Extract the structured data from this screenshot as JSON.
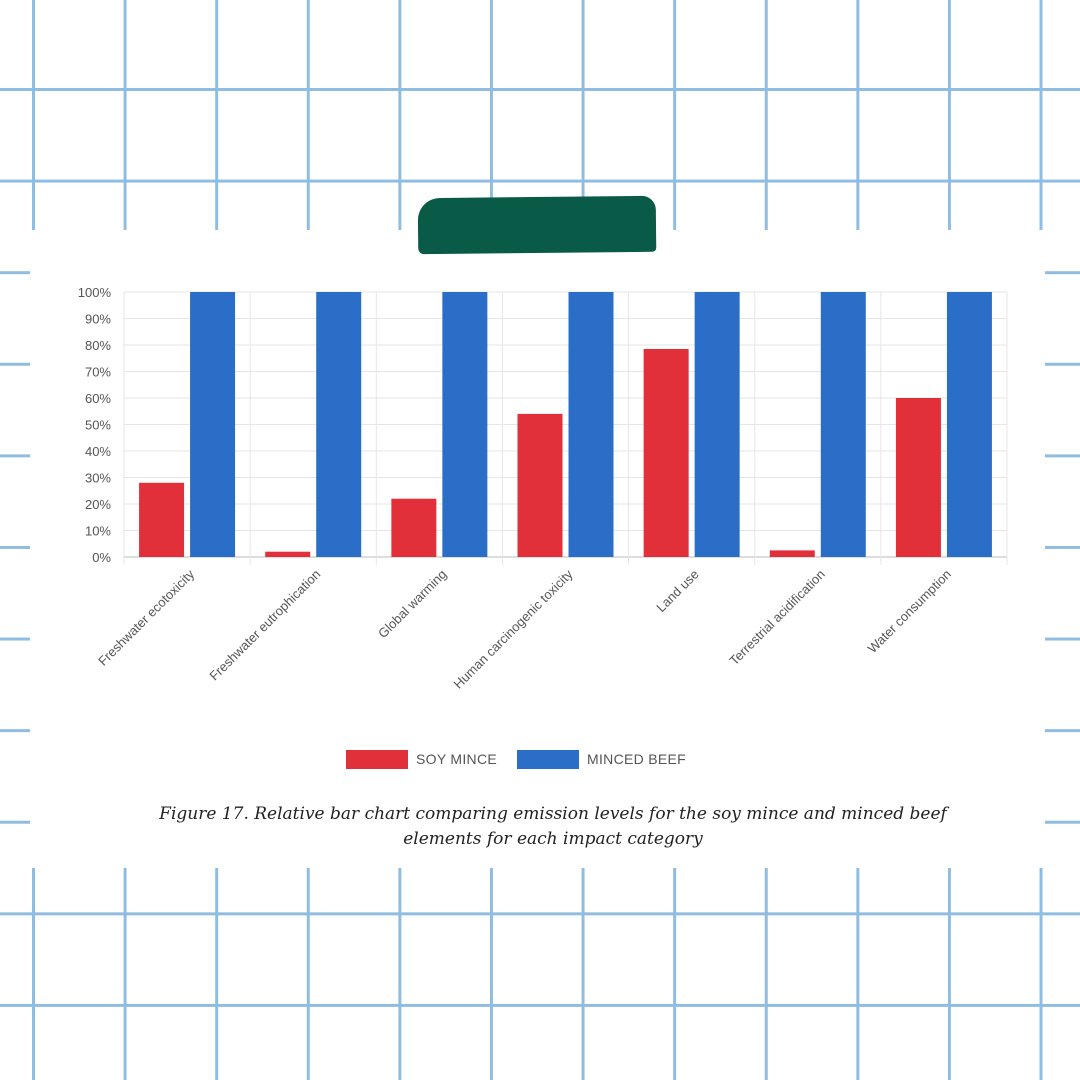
{
  "colors": {
    "soy": "#e1303a",
    "beef": "#2a6ec8",
    "grid": "#e6e6e6",
    "axis": "#bbbbbb",
    "tick_text": "#555555"
  },
  "legend": [
    {
      "label": "SOY MINCE",
      "color": "#e1303a"
    },
    {
      "label": "MINCED BEEF",
      "color": "#2a6ec8"
    }
  ],
  "caption": {
    "line1": "Figure 17. Relative bar chart comparing emission levels for the soy mince and minced beef",
    "line2": "elements for each impact category"
  },
  "chart_data": {
    "type": "bar",
    "title": "",
    "xlabel": "",
    "ylabel": "",
    "categories": [
      "Freshwater ecotoxicity",
      "Freshwater eutrophication",
      "Global warming",
      "Human carcinogenic toxicity",
      "Land use",
      "Terrestrial acidification",
      "Water consumption"
    ],
    "series": [
      {
        "name": "SOY MINCE",
        "values": [
          28,
          2,
          22,
          54,
          78.5,
          2.5,
          60
        ]
      },
      {
        "name": "MINCED BEEF",
        "values": [
          100,
          100,
          100,
          100,
          100,
          100,
          100
        ]
      }
    ],
    "ylim": [
      0,
      100
    ],
    "yticks": [
      "0%",
      "10%",
      "20%",
      "30%",
      "40%",
      "50%",
      "60%",
      "70%",
      "80%",
      "90%",
      "100%"
    ],
    "grid": true,
    "legend_position": "bottom"
  }
}
